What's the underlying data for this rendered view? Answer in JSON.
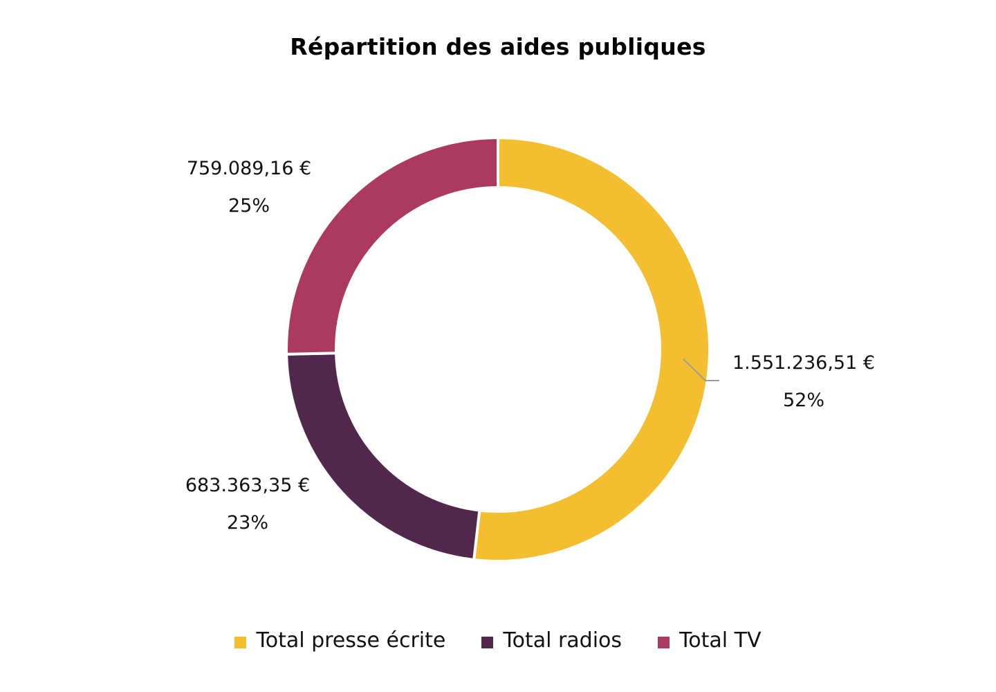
{
  "chart_data": {
    "type": "pie",
    "title": "Répartition des aides publiques",
    "donut": true,
    "legend_position": "bottom",
    "categories": [
      "Total presse écrite",
      "Total radios",
      "Total TV"
    ],
    "values": [
      1551236.51,
      683363.35,
      759089.16
    ],
    "value_labels": [
      "1.551.236,51 €",
      "683.363,35 €",
      "759.089,16 €"
    ],
    "percent_labels": [
      "52%",
      "23%",
      "25%"
    ],
    "colors": [
      "#F3BE2F",
      "#51284B",
      "#AB3962"
    ]
  },
  "legend": {
    "items": [
      {
        "label": "Total presse écrite",
        "color": "#F3BE2F"
      },
      {
        "label": "Total radios",
        "color": "#51284B"
      },
      {
        "label": "Total TV",
        "color": "#AB3962"
      }
    ]
  }
}
